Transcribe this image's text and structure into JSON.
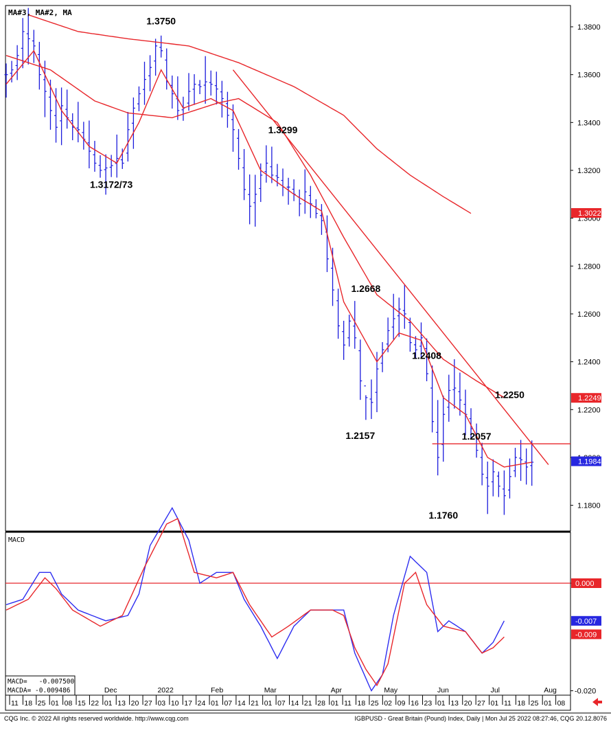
{
  "legend_top": "MA#3,  MA#2,  MA",
  "legend_macd": "MACD",
  "macd_readout": {
    "macd": "MACD=   -0.007500",
    "macda": "MACDA= -0.009486"
  },
  "footer_left": "CQG Inc. © 2022 All rights reserved worldwide. http://www.cqg.com",
  "footer_right": "IGBPUSD - Great Britain (Pound) Index, Daily | Mon Jul 25 2022 08:27:46, CQG 20.12.8076",
  "colors": {
    "bars": "#1a1adc",
    "ma": "#e8262a",
    "macd": "#2d2df0",
    "macda": "#e8262a",
    "badge_red": "#e8262a",
    "badge_blue": "#2727e0"
  },
  "chart_data": {
    "type": "bar",
    "price_axis": {
      "ylim": [
        1.17,
        1.39
      ],
      "ticks": [
        "1.3800",
        "1.3600",
        "1.3400",
        "1.3200",
        "1.3000",
        "1.2800",
        "1.2600",
        "1.2400",
        "1.2200",
        "1.2000",
        "1.1800"
      ]
    },
    "macd_axis": {
      "ylim": [
        -0.021,
        0.018
      ],
      "ticks": [
        "0.000",
        "-0.020"
      ]
    },
    "date_ticks": [
      "11",
      "18",
      "25",
      "01",
      "08",
      "15",
      "22",
      "01",
      "13",
      "20",
      "27",
      "03",
      "10",
      "17",
      "24",
      "01",
      "07",
      "14",
      "21",
      "01",
      "07",
      "14",
      "21",
      "28",
      "01",
      "11",
      "18",
      "25",
      "02",
      "09",
      "16",
      "23",
      "01",
      "13",
      "20",
      "27",
      "01",
      "11",
      "18",
      "25",
      "01",
      "08"
    ],
    "month_labels": [
      {
        "label": "Dec",
        "at": 7
      },
      {
        "label": "2022",
        "at": 11
      },
      {
        "label": "Feb",
        "at": 15
      },
      {
        "label": "Mar",
        "at": 19
      },
      {
        "label": "Apr",
        "at": 24
      },
      {
        "label": "May",
        "at": 28
      },
      {
        "label": "Jun",
        "at": 32
      },
      {
        "label": "Jul",
        "at": 36
      },
      {
        "label": "Aug",
        "at": 40
      }
    ],
    "close_anchors": [
      [
        0,
        1.36
      ],
      [
        1,
        1.362
      ],
      [
        2,
        1.368
      ],
      [
        3,
        1.378
      ],
      [
        4,
        1.375
      ],
      [
        5,
        1.372
      ],
      [
        6,
        1.36
      ],
      [
        7,
        1.353
      ],
      [
        8,
        1.345
      ],
      [
        9,
        1.338
      ],
      [
        10,
        1.347
      ],
      [
        11,
        1.342
      ],
      [
        12,
        1.338
      ],
      [
        13,
        1.337
      ],
      [
        14,
        1.333
      ],
      [
        15,
        1.328
      ],
      [
        16,
        1.323
      ],
      [
        17,
        1.32
      ],
      [
        18,
        1.321
      ],
      [
        19,
        1.322
      ],
      [
        20,
        1.325
      ],
      [
        21,
        1.323
      ],
      [
        22,
        1.337
      ],
      [
        23,
        1.346
      ],
      [
        24,
        1.352
      ],
      [
        25,
        1.358
      ],
      [
        26,
        1.363
      ],
      [
        27,
        1.372
      ],
      [
        28,
        1.37
      ],
      [
        29,
        1.357
      ],
      [
        30,
        1.352
      ],
      [
        31,
        1.345
      ],
      [
        32,
        1.346
      ],
      [
        33,
        1.353
      ],
      [
        34,
        1.356
      ],
      [
        35,
        1.355
      ],
      [
        36,
        1.357
      ],
      [
        37,
        1.356
      ],
      [
        38,
        1.354
      ],
      [
        39,
        1.35
      ],
      [
        40,
        1.343
      ],
      [
        41,
        1.337
      ],
      [
        42,
        1.325
      ],
      [
        43,
        1.312
      ],
      [
        44,
        1.305
      ],
      [
        45,
        1.31
      ],
      [
        46,
        1.318
      ],
      [
        47,
        1.323
      ],
      [
        48,
        1.318
      ],
      [
        49,
        1.317
      ],
      [
        50,
        1.313
      ],
      [
        51,
        1.313
      ],
      [
        52,
        1.31
      ],
      [
        53,
        1.306
      ],
      [
        54,
        1.311
      ],
      [
        55,
        1.306
      ],
      [
        56,
        1.302
      ],
      [
        57,
        1.299
      ],
      [
        58,
        1.283
      ],
      [
        59,
        1.27
      ],
      [
        60,
        1.255
      ],
      [
        61,
        1.247
      ],
      [
        62,
        1.257
      ],
      [
        63,
        1.25
      ],
      [
        64,
        1.232
      ],
      [
        65,
        1.225
      ],
      [
        66,
        1.223
      ],
      [
        67,
        1.237
      ],
      [
        68,
        1.245
      ],
      [
        69,
        1.253
      ],
      [
        70,
        1.258
      ],
      [
        71,
        1.262
      ],
      [
        72,
        1.26
      ],
      [
        73,
        1.248
      ],
      [
        74,
        1.245
      ],
      [
        75,
        1.25
      ],
      [
        76,
        1.235
      ],
      [
        77,
        1.215
      ],
      [
        78,
        1.2
      ],
      [
        79,
        1.218
      ],
      [
        80,
        1.228
      ],
      [
        81,
        1.229
      ],
      [
        82,
        1.224
      ],
      [
        83,
        1.218
      ],
      [
        84,
        1.212
      ],
      [
        85,
        1.203
      ],
      [
        86,
        1.193
      ],
      [
        87,
        1.188
      ],
      [
        88,
        1.194
      ],
      [
        89,
        1.188
      ],
      [
        90,
        1.184
      ],
      [
        91,
        1.192
      ],
      [
        92,
        1.2
      ],
      [
        93,
        1.199
      ],
      [
        94,
        1.196
      ],
      [
        95,
        1.198
      ]
    ],
    "ma_fast": [
      [
        0,
        1.356
      ],
      [
        5,
        1.37
      ],
      [
        10,
        1.345
      ],
      [
        15,
        1.33
      ],
      [
        20,
        1.323
      ],
      [
        24,
        1.34
      ],
      [
        28,
        1.362
      ],
      [
        32,
        1.346
      ],
      [
        37,
        1.35
      ],
      [
        41,
        1.345
      ],
      [
        46,
        1.32
      ],
      [
        52,
        1.31
      ],
      [
        57,
        1.303
      ],
      [
        61,
        1.265
      ],
      [
        67,
        1.24
      ],
      [
        71,
        1.252
      ],
      [
        75,
        1.249
      ],
      [
        79,
        1.225
      ],
      [
        83,
        1.218
      ],
      [
        87,
        1.2
      ],
      [
        90,
        1.196
      ],
      [
        95,
        1.198
      ]
    ],
    "ma_mid": [
      [
        0,
        1.368
      ],
      [
        8,
        1.362
      ],
      [
        16,
        1.349
      ],
      [
        22,
        1.344
      ],
      [
        30,
        1.342
      ],
      [
        38,
        1.348
      ],
      [
        42,
        1.35
      ],
      [
        49,
        1.34
      ],
      [
        55,
        1.318
      ],
      [
        61,
        1.292
      ],
      [
        67,
        1.268
      ],
      [
        73,
        1.257
      ],
      [
        79,
        1.241
      ],
      [
        85,
        1.232
      ],
      [
        90,
        1.225
      ]
    ],
    "ma_slow": [
      [
        4,
        1.385
      ],
      [
        13,
        1.378
      ],
      [
        22,
        1.375
      ],
      [
        33,
        1.372
      ],
      [
        42,
        1.365
      ],
      [
        52,
        1.355
      ],
      [
        61,
        1.343
      ],
      [
        67,
        1.329
      ],
      [
        73,
        1.318
      ],
      [
        79,
        1.309
      ],
      [
        84,
        1.302
      ]
    ],
    "trendline": {
      "from": [
        41,
        1.362
      ],
      "to": [
        98,
        1.197
      ]
    },
    "resistance_line": {
      "from": [
        77,
        1.2057
      ],
      "to": [
        98,
        1.2057
      ]
    },
    "annotations": [
      {
        "text": "1.3750",
        "i": 28,
        "y": 1.381
      },
      {
        "text": "1.3172/73",
        "i": 19,
        "y": 1.3127
      },
      {
        "text": "1.3299",
        "i": 50,
        "y": 1.3355
      },
      {
        "text": "1.2668",
        "i": 65,
        "y": 1.2692
      },
      {
        "text": "1.2157",
        "i": 64,
        "y": 1.2077
      },
      {
        "text": "1.2408",
        "i": 76,
        "y": 1.2412
      },
      {
        "text": "1.2250",
        "i": 91,
        "y": 1.2248
      },
      {
        "text": "1.2057",
        "i": 85,
        "y": 1.2075
      },
      {
        "text": "1.1760",
        "i": 79,
        "y": 1.1745
      }
    ],
    "price_badges": [
      {
        "text": "1.3022",
        "value": 1.3022,
        "color": "red"
      },
      {
        "text": "1.2249",
        "value": 1.2249,
        "color": "red"
      },
      {
        "text": "1.1984",
        "value": 1.1984,
        "color": "blue"
      }
    ],
    "macd_badges": [
      {
        "text": "0.000",
        "value": 0.0,
        "color": "red"
      },
      {
        "text": "-0.007",
        "value": -0.007,
        "color": "blue"
      },
      {
        "text": "-0.009",
        "value": -0.0095,
        "color": "red"
      }
    ],
    "macd": [
      [
        0,
        -0.004
      ],
      [
        3,
        -0.003
      ],
      [
        6,
        0.002
      ],
      [
        8,
        0.002
      ],
      [
        10,
        -0.002
      ],
      [
        13,
        -0.005
      ],
      [
        18,
        -0.007
      ],
      [
        22,
        -0.006
      ],
      [
        24,
        -0.002
      ],
      [
        26,
        0.007
      ],
      [
        30,
        0.014
      ],
      [
        33,
        0.008
      ],
      [
        35,
        0.0
      ],
      [
        38,
        0.002
      ],
      [
        41,
        0.002
      ],
      [
        43,
        -0.003
      ],
      [
        46,
        -0.008
      ],
      [
        49,
        -0.014
      ],
      [
        52,
        -0.008
      ],
      [
        55,
        -0.005
      ],
      [
        59,
        -0.005
      ],
      [
        61,
        -0.005
      ],
      [
        63,
        -0.013
      ],
      [
        66,
        -0.02
      ],
      [
        68,
        -0.017
      ],
      [
        70,
        -0.006
      ],
      [
        73,
        0.005
      ],
      [
        76,
        0.002
      ],
      [
        78,
        -0.009
      ],
      [
        80,
        -0.007
      ],
      [
        83,
        -0.009
      ],
      [
        86,
        -0.013
      ],
      [
        88,
        -0.011
      ],
      [
        90,
        -0.007
      ]
    ],
    "macda": [
      [
        0,
        -0.005
      ],
      [
        4,
        -0.003
      ],
      [
        7,
        0.001
      ],
      [
        9,
        -0.001
      ],
      [
        12,
        -0.005
      ],
      [
        17,
        -0.008
      ],
      [
        21,
        -0.006
      ],
      [
        25,
        0.003
      ],
      [
        29,
        0.011
      ],
      [
        31,
        0.012
      ],
      [
        34,
        0.002
      ],
      [
        38,
        0.001
      ],
      [
        41,
        0.002
      ],
      [
        44,
        -0.004
      ],
      [
        48,
        -0.01
      ],
      [
        51,
        -0.008
      ],
      [
        55,
        -0.005
      ],
      [
        59,
        -0.005
      ],
      [
        61,
        -0.006
      ],
      [
        63,
        -0.012
      ],
      [
        65,
        -0.016
      ],
      [
        67,
        -0.019
      ],
      [
        69,
        -0.015
      ],
      [
        72,
        0.0
      ],
      [
        74,
        0.002
      ],
      [
        76,
        -0.004
      ],
      [
        79,
        -0.008
      ],
      [
        83,
        -0.009
      ],
      [
        86,
        -0.013
      ],
      [
        88,
        -0.012
      ],
      [
        90,
        -0.01
      ]
    ]
  }
}
